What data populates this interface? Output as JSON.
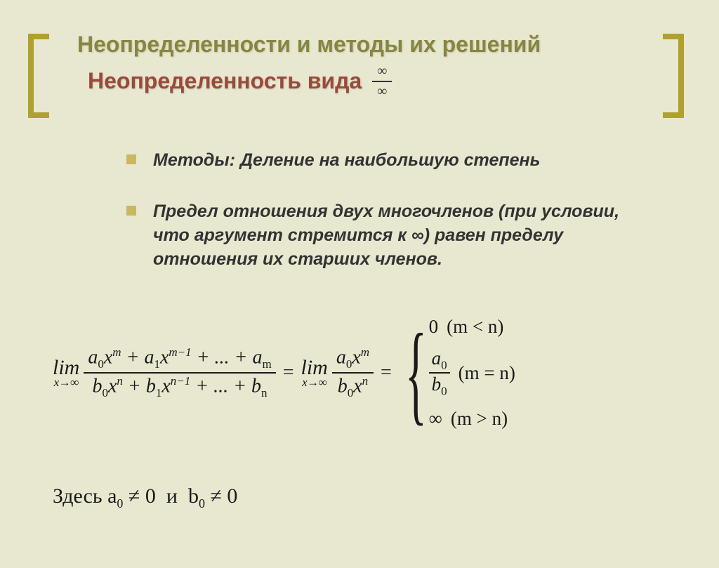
{
  "title": "Неопределенности и методы их решений",
  "subtitle": "Неопределенность вида",
  "inf_symbol": "∞",
  "bullets": {
    "methods_label": "Методы:",
    "methods_text": " Деление на наибольшую степень",
    "rule_text": "Предел отношения двух многочленов (при условии, что аргумент стремится к ∞) равен пределу отношения их старших членов."
  },
  "formula": {
    "lim": "lim",
    "limsub_text": "x→∞",
    "numerator": "a₀xᵐ + a₁xᵐ⁻¹ + ... + aₘ",
    "denominator": "b₀xⁿ + b₁xⁿ⁻¹ + ... + bₙ",
    "numerator2": "a₀xᵐ",
    "denominator2": "b₀xⁿ",
    "case1_val": "0",
    "case1_cond": "(m < n)",
    "case2_num": "a₀",
    "case2_den": "b₀",
    "case2_cond": "(m = n)",
    "case3_val": "∞",
    "case3_cond": "(m > n)"
  },
  "footer": "Здесь a₀ ≠ 0  и  b₀ ≠ 0",
  "colors": {
    "background": "#e8e8d0",
    "title": "#868640",
    "subtitle": "#9a4a3a",
    "bracket": "#b0a030",
    "bullet": "#c8b860",
    "text": "#333333"
  },
  "typography": {
    "title_size": 32,
    "body_size": 25,
    "formula_size": 28
  }
}
